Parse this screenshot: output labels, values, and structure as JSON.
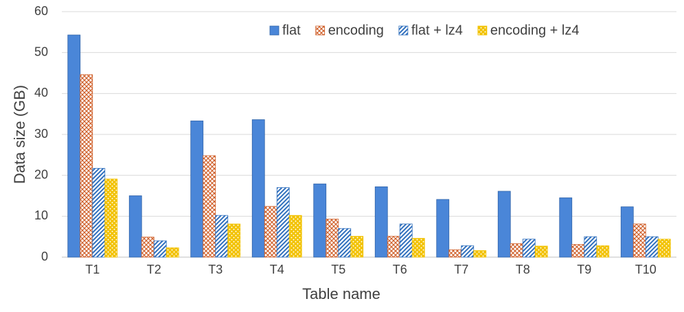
{
  "chart_data": {
    "type": "bar",
    "x_label": "Table name",
    "y_label": "Data size (GB)",
    "categories": [
      "T1",
      "T2",
      "T3",
      "T4",
      "T5",
      "T6",
      "T7",
      "T8",
      "T9",
      "T10"
    ],
    "series": [
      {
        "name": "flat",
        "color": "#4a86d8",
        "pattern": "solid",
        "values": [
          54.3,
          15.0,
          33.3,
          33.6,
          17.9,
          17.2,
          14.1,
          16.1,
          14.5,
          12.3
        ]
      },
      {
        "name": "encoding",
        "color": "#d0602a",
        "pattern": "crosshatch",
        "values": [
          44.6,
          4.9,
          24.8,
          12.4,
          9.3,
          5.1,
          1.8,
          3.3,
          3.1,
          8.1
        ]
      },
      {
        "name": "flat + lz4",
        "color": "#2f6fbd",
        "pattern": "diagonal",
        "values": [
          21.7,
          4.0,
          10.2,
          17.0,
          7.0,
          8.1,
          2.8,
          4.4,
          5.0,
          5.0
        ]
      },
      {
        "name": "encoding + lz4",
        "color": "#f2c200",
        "pattern": "dots",
        "values": [
          19.1,
          2.3,
          8.1,
          10.2,
          5.1,
          4.6,
          1.6,
          2.7,
          2.8,
          4.4
        ]
      }
    ],
    "ylim": [
      0,
      60
    ],
    "yticks": [
      0,
      10,
      20,
      30,
      40,
      50,
      60
    ],
    "grid": true,
    "legend": "top"
  }
}
